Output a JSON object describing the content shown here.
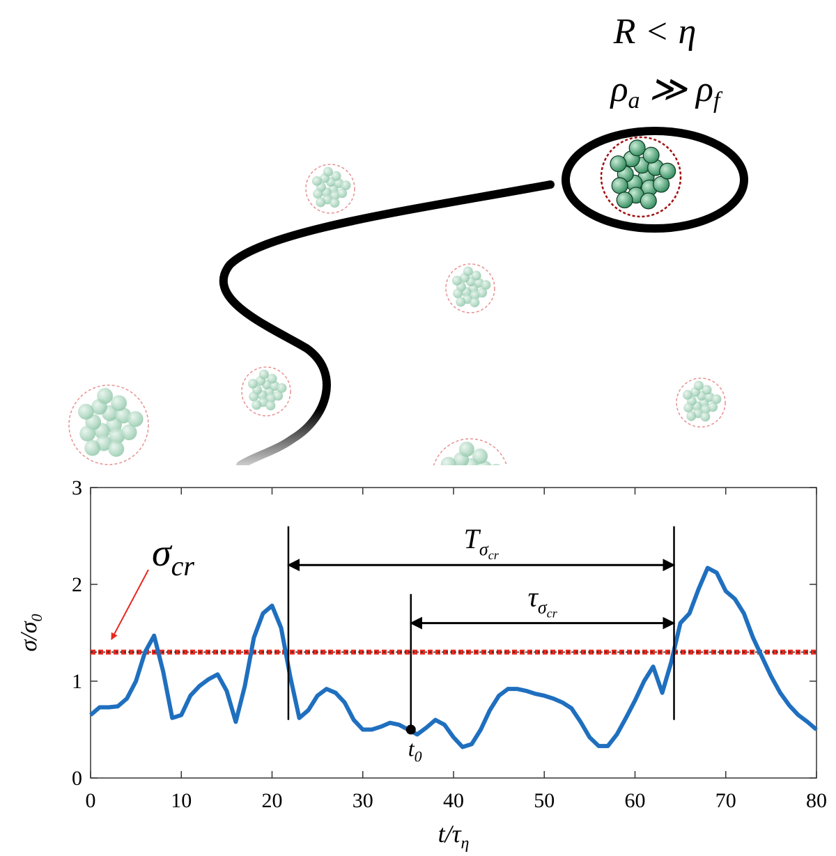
{
  "illustration": {
    "condition": "R < η",
    "density": [
      "ρ",
      "a",
      " ≫ ρ",
      "f"
    ]
  },
  "chart_data": {
    "type": "line",
    "x_label": {
      "base": "t/τ",
      "sub": "η"
    },
    "y_label": {
      "base": "σ/σ",
      "sub": "0"
    },
    "x": [
      0,
      1,
      2,
      3,
      4,
      5,
      6,
      7,
      8,
      9,
      10,
      11,
      12,
      13,
      14,
      15,
      16,
      17,
      18,
      19,
      20,
      21,
      22,
      23,
      24,
      25,
      26,
      27,
      28,
      29,
      30,
      31,
      32,
      33,
      34,
      35,
      36,
      37,
      38,
      39,
      40,
      41,
      42,
      43,
      44,
      45,
      46,
      47,
      48,
      49,
      50,
      51,
      52,
      53,
      54,
      55,
      56,
      57,
      58,
      59,
      60,
      61,
      62,
      63,
      64,
      65,
      66,
      67,
      68,
      69,
      70,
      71,
      72,
      73,
      74,
      75,
      76,
      77,
      78,
      79,
      80
    ],
    "series": [
      {
        "color": "#1f6fbf",
        "values": [
          0.65,
          0.73,
          0.73,
          0.74,
          0.82,
          1.0,
          1.3,
          1.47,
          1.1,
          0.62,
          0.65,
          0.85,
          0.95,
          1.02,
          1.07,
          0.9,
          0.58,
          0.95,
          1.45,
          1.7,
          1.78,
          1.55,
          1.05,
          0.62,
          0.7,
          0.85,
          0.92,
          0.88,
          0.78,
          0.6,
          0.5,
          0.5,
          0.53,
          0.57,
          0.55,
          0.5,
          0.45,
          0.52,
          0.6,
          0.55,
          0.42,
          0.32,
          0.35,
          0.5,
          0.7,
          0.85,
          0.92,
          0.92,
          0.9,
          0.87,
          0.85,
          0.82,
          0.78,
          0.72,
          0.58,
          0.42,
          0.33,
          0.33,
          0.45,
          0.62,
          0.8,
          1.0,
          1.15,
          0.88,
          1.2,
          1.6,
          1.7,
          1.95,
          2.17,
          2.12,
          1.93,
          1.85,
          1.7,
          1.45,
          1.25,
          1.05,
          0.88,
          0.75,
          0.65,
          0.58,
          0.5
        ]
      }
    ],
    "xlim": [
      0,
      80
    ],
    "xticks": [
      0,
      10,
      20,
      30,
      40,
      50,
      60,
      70,
      80
    ],
    "ylim": [
      0,
      3
    ],
    "yticks": [
      0,
      1,
      2,
      3
    ],
    "threshold": {
      "value": 1.3,
      "color": "#e8281e",
      "label": {
        "base": "σ",
        "sub": "cr"
      }
    },
    "guide_lines": [
      {
        "x": 21.8,
        "from": 0.6,
        "to": 2.6
      },
      {
        "x": 64.3,
        "from": 0.6,
        "to": 2.6
      },
      {
        "x": 35.3,
        "from": 0.5,
        "to": 1.9
      }
    ],
    "intervals": [
      {
        "start": 21.8,
        "end": 64.3,
        "y": 2.2,
        "label": {
          "base": "T",
          "sub": "σ",
          "subsub": "cr"
        }
      },
      {
        "start": 35.3,
        "end": 64.3,
        "y": 1.6,
        "label": {
          "base": "τ",
          "sub": "σ",
          "subsub": "cr"
        }
      }
    ],
    "point": {
      "x": 35.3,
      "y": 0.5,
      "label": {
        "base": "t",
        "sub": "0"
      }
    }
  }
}
